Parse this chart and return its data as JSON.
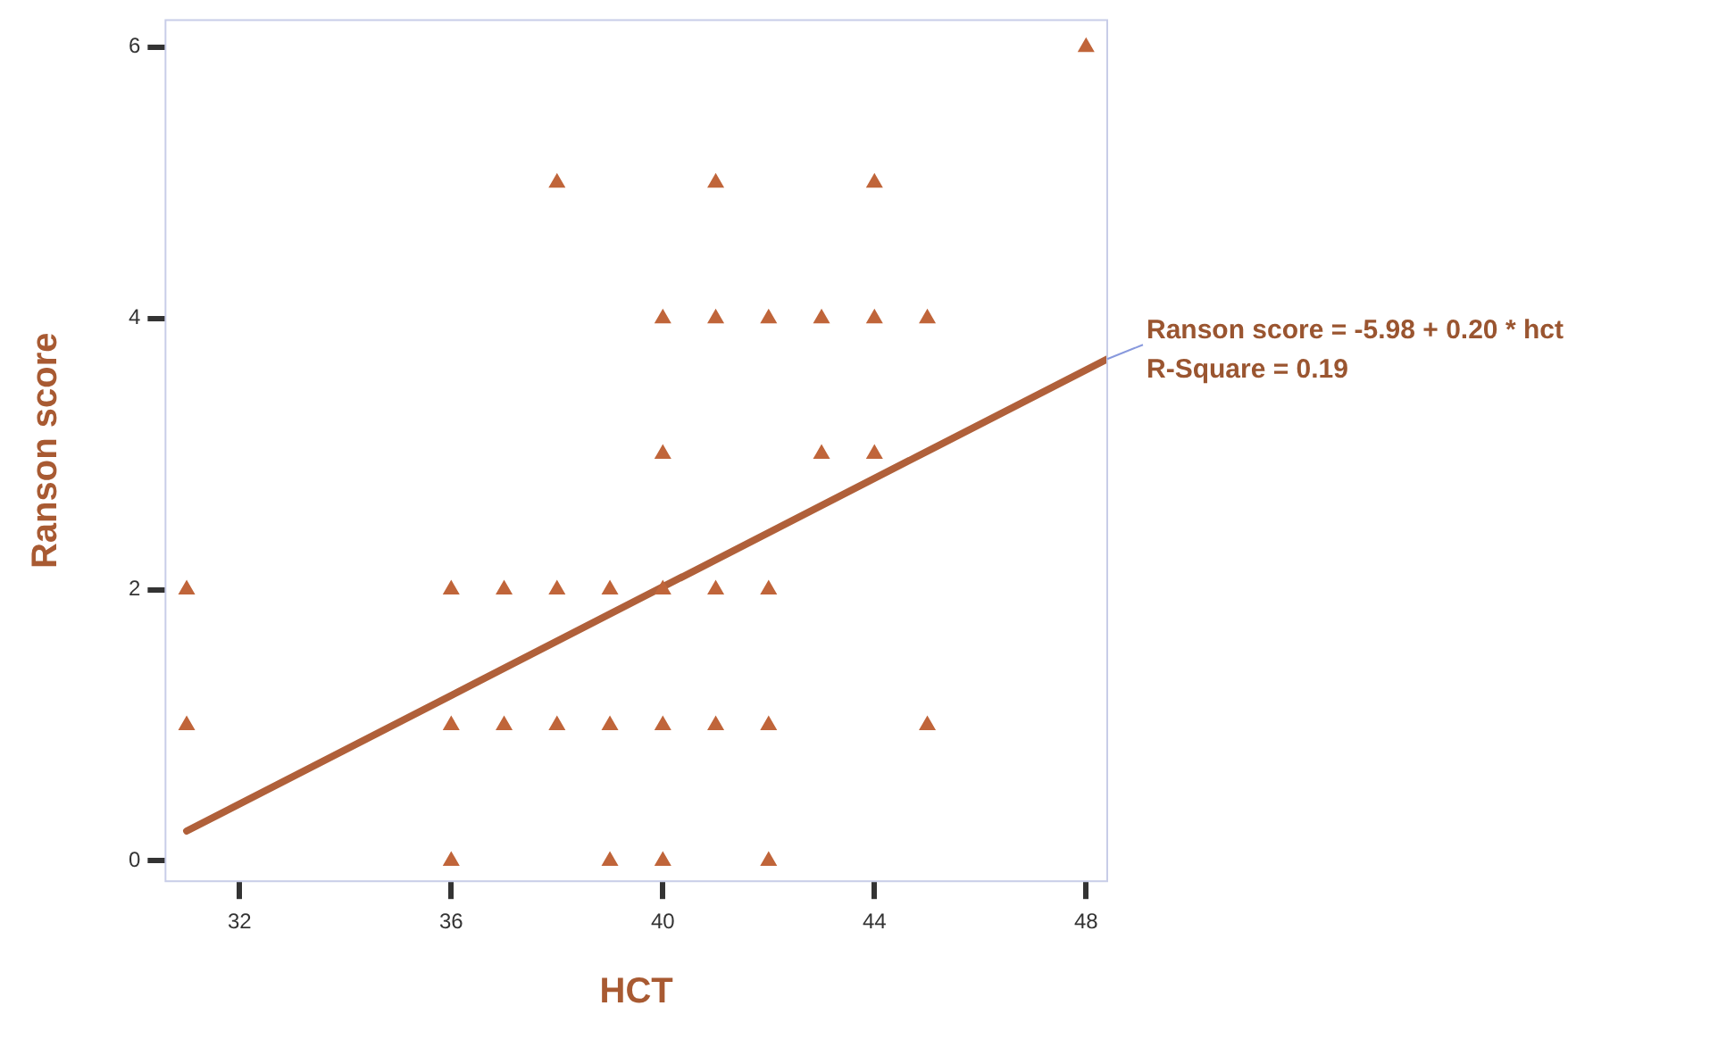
{
  "chart_data": {
    "type": "scatter",
    "xlabel": "HCT",
    "ylabel": "Ranson score",
    "xlim": [
      30.6,
      48.4
    ],
    "xticks": [
      32,
      36,
      40,
      44,
      48
    ],
    "ylim": [
      -0.15,
      6.2
    ],
    "yticks": [
      0,
      2,
      4,
      6
    ],
    "grid": false,
    "legend": false,
    "marker": "triangle",
    "series": [
      {
        "color": "#c0653a",
        "x": [
          48,
          38,
          41,
          44,
          40,
          41,
          42,
          43,
          44,
          45,
          40,
          43,
          44,
          31,
          36,
          37,
          38,
          39,
          40,
          41,
          42,
          31,
          36,
          37,
          38,
          39,
          40,
          41,
          42,
          45,
          36,
          39,
          40,
          42
        ],
        "values": [
          6,
          5,
          5,
          5,
          4,
          4,
          4,
          4,
          4,
          4,
          3,
          3,
          3,
          2,
          2,
          2,
          2,
          2,
          2,
          2,
          2,
          1,
          1,
          1,
          1,
          1,
          1,
          1,
          1,
          1,
          0,
          0,
          0,
          0
        ]
      },
      {
        "type": "line",
        "color": "#b0603a",
        "x": [
          31,
          48.4
        ],
        "values": [
          0.22,
          3.7
        ],
        "marker": "none"
      }
    ],
    "annotations": [
      {
        "text": "Ranson score = -5.98 + 0.20 * hct",
        "x": 48.4,
        "y": 3.7
      },
      "R-Square = 0.19"
    ]
  }
}
